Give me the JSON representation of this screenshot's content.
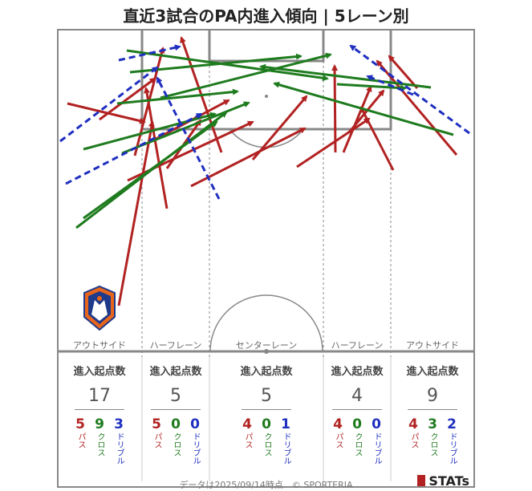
{
  "title": "直近3試合のPA内進入傾向 | 5レーン別",
  "lanes": [
    {
      "label": "アウトサイド",
      "stat_header": "進入起点数",
      "total": "17",
      "pass": "5",
      "cross": "9",
      "dribble": "3"
    },
    {
      "label": "ハーフレーン",
      "stat_header": "進入起点数",
      "total": "5",
      "pass": "5",
      "cross": "0",
      "dribble": "0"
    },
    {
      "label": "センターレーン",
      "stat_header": "進入起点数",
      "total": "5",
      "pass": "4",
      "cross": "0",
      "dribble": "1"
    },
    {
      "label": "ハーフレーン",
      "stat_header": "進入起点数",
      "total": "4",
      "pass": "4",
      "cross": "0",
      "dribble": "0"
    },
    {
      "label": "アウトサイド",
      "stat_header": "進入起点数",
      "total": "9",
      "pass": "4",
      "cross": "3",
      "dribble": "2"
    }
  ],
  "legend": {
    "pass": "パス",
    "cross": "クロス",
    "dribble": "ドリブル"
  },
  "colors": {
    "pass": "#b22222",
    "cross": "#1e7b1e",
    "dribble": "#1f2fbf",
    "pitch_line": "#888888"
  },
  "footer": "データは2025/09/14時点　© SPORTERIA",
  "brand": "STATs",
  "team_logo_icon": "albirex-crest-icon"
}
